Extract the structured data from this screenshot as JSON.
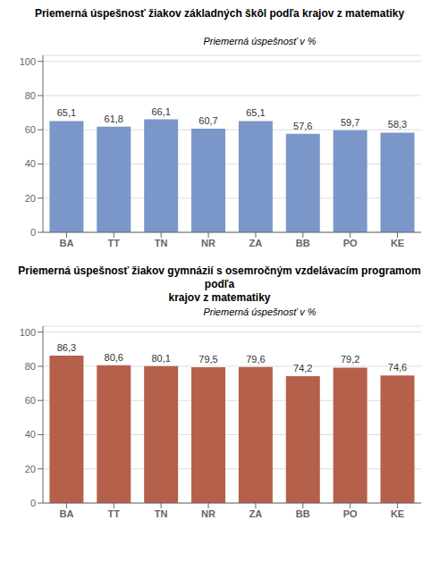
{
  "chart_data": [
    {
      "type": "bar",
      "title": "Priemerná úspešnosť žiakov základných škôl podľa krajov z matematiky",
      "ylabel": "Priemerná úspešnosť v %",
      "categories": [
        "BA",
        "TT",
        "TN",
        "NR",
        "ZA",
        "BB",
        "PO",
        "KE"
      ],
      "values": [
        65.1,
        61.8,
        66.1,
        60.7,
        65.1,
        57.6,
        59.7,
        58.3
      ],
      "value_labels": [
        "65,1",
        "61,8",
        "66,1",
        "60,7",
        "65,1",
        "57,6",
        "59,7",
        "58,3"
      ],
      "data_labels": true,
      "color": "#7b96c8",
      "ylim": [
        0,
        103.5
      ],
      "yticks": [
        0,
        20,
        40,
        60,
        80,
        100
      ],
      "grid": true
    },
    {
      "type": "bar",
      "title": "Priemerná úspešnosť žiakov gymnázií s osemročným vzdelávacím programom podľa\nkrajov z matematiky",
      "ylabel": "Priemerná úspešnosť v %",
      "categories": [
        "BA",
        "TT",
        "TN",
        "NR",
        "ZA",
        "BB",
        "PO",
        "KE"
      ],
      "values": [
        86.3,
        80.6,
        80.1,
        79.5,
        79.6,
        74.2,
        79.2,
        74.6
      ],
      "value_labels": [
        "86,3",
        "80,6",
        "80,1",
        "79,5",
        "79,6",
        "74,2",
        "79,2",
        "74,6"
      ],
      "data_labels": true,
      "color": "#b5604a",
      "ylim": [
        0,
        103.5
      ],
      "yticks": [
        0,
        20,
        40,
        60,
        80,
        100
      ],
      "grid": true
    }
  ]
}
